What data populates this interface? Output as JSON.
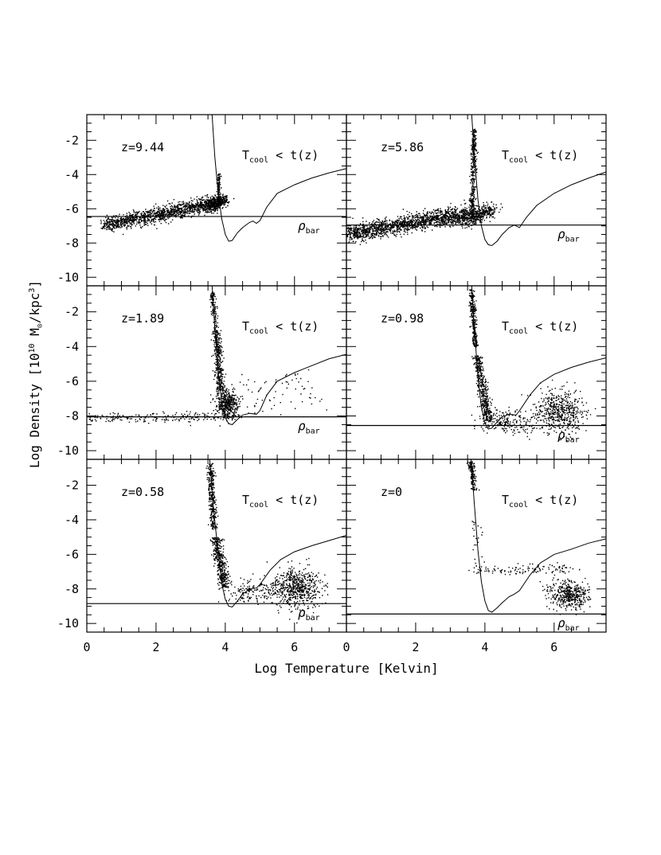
{
  "chart_data": {
    "type": "scatter",
    "figure": {
      "xlabel": "Log Temperature [Kelvin]",
      "ylabel_parts": {
        "prefix": "Log Density  [10",
        "exp1": "10",
        "mid": " M",
        "sun": "⊙",
        "slash": "/kpc",
        "exp2": "3",
        "suffix": "]"
      },
      "xlim": [
        0,
        7.5
      ],
      "ylim": [
        -10.5,
        -0.5
      ],
      "xticks": [
        0,
        2,
        4,
        6
      ],
      "yticks": [
        -2,
        -4,
        -6,
        -8,
        -10
      ],
      "cool_label": {
        "T": "T",
        "sub": "cool",
        "rest": " < t(z)"
      },
      "rho_label": {
        "rho": "ρ",
        "sub": "bar"
      }
    },
    "panels": [
      {
        "label": "z=9.44",
        "rho_bar": -6.45,
        "cooling_curve": [
          [
            3.62,
            -0.5
          ],
          [
            3.7,
            -3.0
          ],
          [
            3.8,
            -5.2
          ],
          [
            3.9,
            -6.6
          ],
          [
            4.0,
            -7.5
          ],
          [
            4.1,
            -7.9
          ],
          [
            4.2,
            -7.85
          ],
          [
            4.35,
            -7.4
          ],
          [
            4.5,
            -7.1
          ],
          [
            4.7,
            -6.8
          ],
          [
            4.8,
            -6.72
          ],
          [
            4.9,
            -6.85
          ],
          [
            5.0,
            -6.7
          ],
          [
            5.2,
            -5.9
          ],
          [
            5.5,
            -5.1
          ],
          [
            6.0,
            -4.6
          ],
          [
            6.5,
            -4.2
          ],
          [
            7.0,
            -3.9
          ],
          [
            7.5,
            -3.65
          ]
        ],
        "clouds": [
          {
            "x0": 0.5,
            "y0": -6.95,
            "x1": 3.75,
            "y1": -5.6,
            "sx": 0.07,
            "sy": 0.22,
            "n": 1300
          },
          {
            "x0": 3.5,
            "y0": -5.9,
            "x1": 4.0,
            "y1": -5.4,
            "sx": 0.1,
            "sy": 0.18,
            "n": 300
          },
          {
            "x0": 3.8,
            "y0": -5.8,
            "x1": 3.8,
            "y1": -3.9,
            "sx": 0.025,
            "sy": 0.0,
            "n": 120
          }
        ]
      },
      {
        "label": "z=5.86",
        "rho_bar": -6.95,
        "cooling_curve": [
          [
            3.62,
            -0.5
          ],
          [
            3.7,
            -3.0
          ],
          [
            3.8,
            -5.5
          ],
          [
            3.9,
            -7.0
          ],
          [
            4.0,
            -7.8
          ],
          [
            4.1,
            -8.1
          ],
          [
            4.2,
            -8.15
          ],
          [
            4.35,
            -7.9
          ],
          [
            4.5,
            -7.5
          ],
          [
            4.7,
            -7.1
          ],
          [
            4.85,
            -6.95
          ],
          [
            5.0,
            -7.1
          ],
          [
            5.2,
            -6.5
          ],
          [
            5.5,
            -5.8
          ],
          [
            6.0,
            -5.1
          ],
          [
            6.5,
            -4.6
          ],
          [
            7.0,
            -4.2
          ],
          [
            7.5,
            -3.85
          ]
        ],
        "clouds": [
          {
            "x0": 0.0,
            "y0": -7.45,
            "x1": 3.55,
            "y1": -6.2,
            "sx": 0.09,
            "sy": 0.25,
            "n": 1500
          },
          {
            "x0": 3.35,
            "y0": -6.7,
            "x1": 4.2,
            "y1": -6.0,
            "sx": 0.14,
            "sy": 0.22,
            "n": 400
          },
          {
            "x0": 3.62,
            "y0": -6.5,
            "x1": 3.68,
            "y1": -1.2,
            "sx": 0.04,
            "sy": 0.0,
            "n": 350
          }
        ]
      },
      {
        "label": "z=1.89",
        "rho_bar": -8.05,
        "cooling_curve": [
          [
            3.62,
            -0.5
          ],
          [
            3.7,
            -3.0
          ],
          [
            3.8,
            -5.6
          ],
          [
            3.9,
            -7.2
          ],
          [
            4.0,
            -8.1
          ],
          [
            4.1,
            -8.45
          ],
          [
            4.2,
            -8.5
          ],
          [
            4.35,
            -8.2
          ],
          [
            4.5,
            -7.95
          ],
          [
            4.7,
            -7.85
          ],
          [
            4.9,
            -7.9
          ],
          [
            5.0,
            -7.7
          ],
          [
            5.2,
            -6.8
          ],
          [
            5.5,
            -6.0
          ],
          [
            6.0,
            -5.5
          ],
          [
            6.5,
            -5.1
          ],
          [
            7.0,
            -4.7
          ],
          [
            7.5,
            -4.45
          ]
        ],
        "clouds": [
          {
            "x0": 3.6,
            "y0": -0.8,
            "x1": 3.72,
            "y1": -3.0,
            "sx": 0.04,
            "sy": 0.0,
            "n": 120
          },
          {
            "x0": 3.72,
            "y0": -3.0,
            "x1": 3.85,
            "y1": -6.5,
            "sx": 0.06,
            "sy": 0.0,
            "n": 350
          },
          {
            "x0": 3.9,
            "y0": -7.0,
            "x1": 4.15,
            "y1": -7.6,
            "sx": 0.14,
            "sy": 0.4,
            "n": 450
          },
          {
            "x0": 0.0,
            "y0": -8.1,
            "x1": 4.0,
            "y1": -8.0,
            "sx": 0.4,
            "sy": 0.16,
            "n": 220
          },
          {
            "x0": 4.0,
            "y0": -7.2,
            "x1": 6.5,
            "y1": -6.3,
            "sx": 0.45,
            "sy": 0.5,
            "n": 80
          }
        ]
      },
      {
        "label": "z=0.98",
        "rho_bar": -8.55,
        "cooling_curve": [
          [
            3.62,
            -0.5
          ],
          [
            3.7,
            -3.0
          ],
          [
            3.8,
            -5.8
          ],
          [
            3.9,
            -7.5
          ],
          [
            4.0,
            -8.4
          ],
          [
            4.1,
            -8.75
          ],
          [
            4.2,
            -8.7
          ],
          [
            4.35,
            -8.35
          ],
          [
            4.5,
            -8.05
          ],
          [
            4.7,
            -7.9
          ],
          [
            4.9,
            -7.95
          ],
          [
            5.0,
            -7.7
          ],
          [
            5.3,
            -6.8
          ],
          [
            5.6,
            -6.1
          ],
          [
            6.0,
            -5.6
          ],
          [
            6.5,
            -5.2
          ],
          [
            7.0,
            -4.9
          ],
          [
            7.5,
            -4.65
          ]
        ],
        "clouds": [
          {
            "x0": 3.6,
            "y0": -0.7,
            "x1": 3.72,
            "y1": -4.0,
            "sx": 0.04,
            "sy": 0.0,
            "n": 260
          },
          {
            "x0": 3.75,
            "y0": -4.5,
            "x1": 4.1,
            "y1": -8.3,
            "sx": 0.07,
            "sy": 0.0,
            "n": 420
          },
          {
            "x0": 4.3,
            "y0": -8.2,
            "x1": 5.0,
            "y1": -8.4,
            "sx": 0.35,
            "sy": 0.35,
            "n": 200
          },
          {
            "x0": 6.0,
            "y0": -7.8,
            "x1": 6.3,
            "y1": -7.6,
            "sx": 0.35,
            "sy": 0.6,
            "n": 520
          }
        ]
      },
      {
        "label": "z=0.58",
        "rho_bar": -8.85,
        "cooling_curve": [
          [
            3.55,
            -0.5
          ],
          [
            3.65,
            -3.2
          ],
          [
            3.8,
            -6.0
          ],
          [
            3.9,
            -7.7
          ],
          [
            4.0,
            -8.6
          ],
          [
            4.1,
            -9.0
          ],
          [
            4.2,
            -9.05
          ],
          [
            4.35,
            -8.7
          ],
          [
            4.5,
            -8.3
          ],
          [
            4.7,
            -8.0
          ],
          [
            4.9,
            -7.95
          ],
          [
            5.0,
            -7.75
          ],
          [
            5.3,
            -6.9
          ],
          [
            5.6,
            -6.3
          ],
          [
            6.0,
            -5.85
          ],
          [
            6.5,
            -5.5
          ],
          [
            7.0,
            -5.2
          ],
          [
            7.5,
            -4.9
          ]
        ],
        "clouds": [
          {
            "x0": 3.55,
            "y0": -0.7,
            "x1": 3.65,
            "y1": -4.5,
            "sx": 0.05,
            "sy": 0.0,
            "n": 300
          },
          {
            "x0": 3.7,
            "y0": -5.0,
            "x1": 4.0,
            "y1": -7.9,
            "sx": 0.08,
            "sy": 0.0,
            "n": 380
          },
          {
            "x0": 4.3,
            "y0": -8.2,
            "x1": 5.2,
            "y1": -8.0,
            "sx": 0.3,
            "sy": 0.3,
            "n": 160
          },
          {
            "x0": 5.9,
            "y0": -7.8,
            "x1": 6.2,
            "y1": -8.0,
            "sx": 0.35,
            "sy": 0.55,
            "n": 600
          }
        ]
      },
      {
        "label": "z=0",
        "rho_bar": -9.45,
        "cooling_curve": [
          [
            3.6,
            -0.5
          ],
          [
            3.7,
            -3.2
          ],
          [
            3.8,
            -5.8
          ],
          [
            3.9,
            -7.6
          ],
          [
            4.0,
            -8.7
          ],
          [
            4.1,
            -9.25
          ],
          [
            4.2,
            -9.35
          ],
          [
            4.35,
            -9.1
          ],
          [
            4.5,
            -8.8
          ],
          [
            4.7,
            -8.45
          ],
          [
            4.85,
            -8.3
          ],
          [
            5.0,
            -8.1
          ],
          [
            5.3,
            -7.2
          ],
          [
            5.6,
            -6.5
          ],
          [
            6.0,
            -6.0
          ],
          [
            6.5,
            -5.7
          ],
          [
            7.0,
            -5.35
          ],
          [
            7.5,
            -5.1
          ]
        ],
        "clouds": [
          {
            "x0": 3.58,
            "y0": -0.6,
            "x1": 3.68,
            "y1": -2.3,
            "sx": 0.04,
            "sy": 0.0,
            "n": 160
          },
          {
            "x0": 3.7,
            "y0": -4.0,
            "x1": 3.75,
            "y1": -7.0,
            "sx": 0.1,
            "sy": 0.0,
            "n": 25
          },
          {
            "x0": 3.8,
            "y0": -6.9,
            "x1": 6.5,
            "y1": -6.8,
            "sx": 0.2,
            "sy": 0.15,
            "n": 120
          },
          {
            "x0": 6.4,
            "y0": -8.3,
            "x1": 6.4,
            "y1": -8.3,
            "sx": 0.28,
            "sy": 0.4,
            "n": 420
          }
        ]
      }
    ]
  }
}
